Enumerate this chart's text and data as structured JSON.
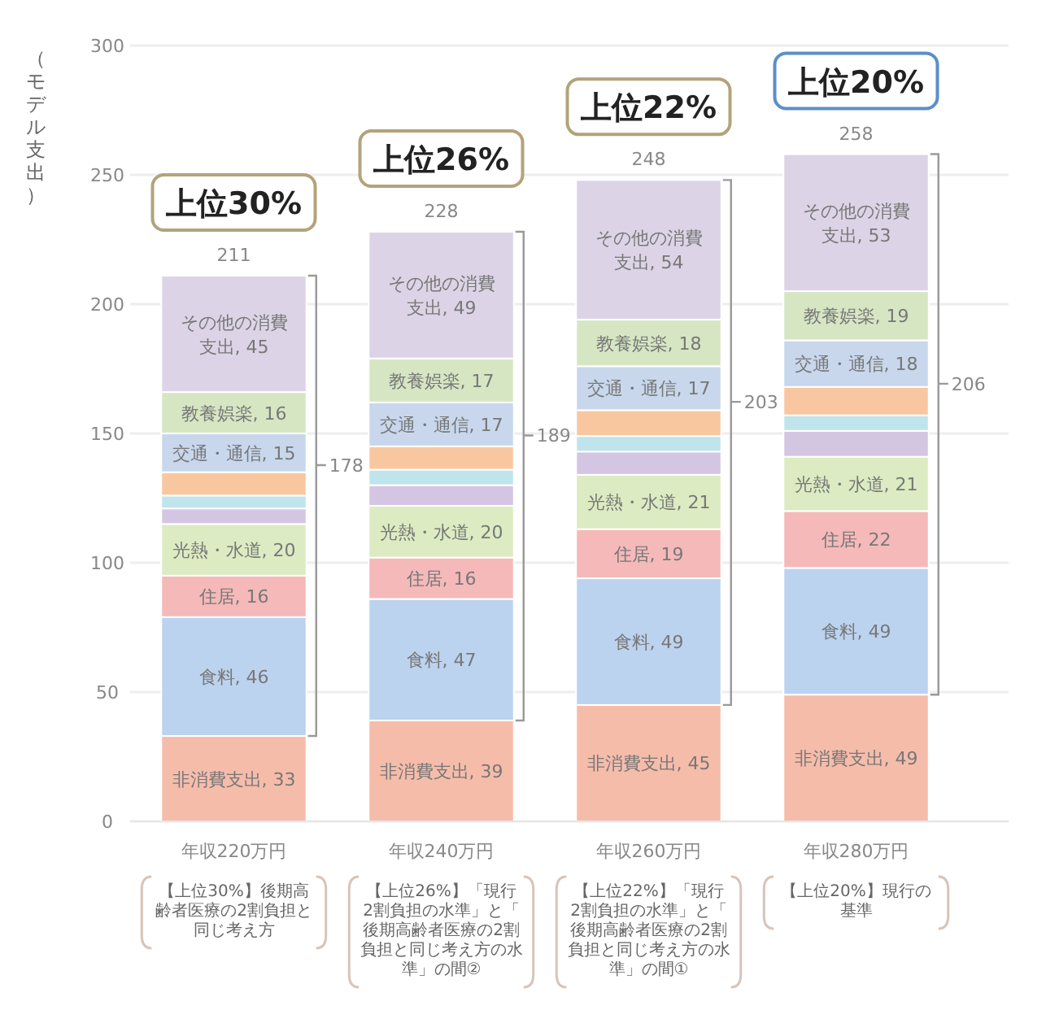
{
  "chart_data": {
    "type": "bar",
    "stacked": true,
    "ylabel": "（モデル支出）",
    "categories": [
      "年収220万円",
      "年収240万円",
      "年収260万円",
      "年収280万円"
    ],
    "ylim": [
      0,
      300
    ],
    "yticks": [
      0,
      50,
      100,
      150,
      200,
      250,
      300
    ],
    "grid": "y",
    "totals": [
      "211",
      "228",
      "248",
      "258"
    ],
    "series": [
      {
        "color": "#f6bcaa",
        "values": [
          33,
          39,
          45,
          49
        ],
        "value_labels": [
          "非消費支出, 33",
          "非消費支出, 39",
          "非消費支出, 45",
          "非消費支出, 49"
        ]
      },
      {
        "color": "#bcd3ef",
        "values": [
          46,
          47,
          49,
          49
        ],
        "value_labels": [
          "食料, 46",
          "食料, 47",
          "食料, 49",
          "食料, 49"
        ]
      },
      {
        "color": "#f5b9b9",
        "values": [
          16,
          16,
          19,
          22
        ],
        "value_labels": [
          "住居, 16",
          "住居, 16",
          "住居, 19",
          "住居, 22"
        ]
      },
      {
        "color": "#dcebc2",
        "values": [
          20,
          20,
          21,
          21
        ],
        "value_labels": [
          "光熱・水道, 20",
          "光熱・水道, 20",
          "光熱・水道, 21",
          "光熱・水道, 21"
        ]
      },
      {
        "color": "#d4c6e3",
        "values": [
          6,
          8,
          9,
          10
        ]
      },
      {
        "color": "#bfe4ec",
        "values": [
          5,
          6,
          6,
          6
        ]
      },
      {
        "color": "#f8c7a0",
        "values": [
          9,
          9,
          10,
          11
        ]
      },
      {
        "color": "#c8d7ec",
        "values": [
          15,
          17,
          17,
          18
        ],
        "value_labels": [
          "交通・通信, 15",
          "交通・通信, 17",
          "交通・通信, 17",
          "交通・通信, 18"
        ]
      },
      {
        "color": "#d6e6c3",
        "values": [
          16,
          17,
          18,
          19
        ],
        "value_labels": [
          "教養娯楽, 16",
          "教養娯楽, 17",
          "教養娯楽, 18",
          "教養娯楽, 19"
        ]
      },
      {
        "color": "#dcd4e6",
        "values": [
          45,
          49,
          54,
          53
        ],
        "value_labels": [
          "その他の消費支出, 45",
          "その他の消費支出, 49",
          "その他の消費支出, 54",
          "その他の消費支出, 53"
        ]
      }
    ],
    "annotations": [
      "上位30%",
      "上位26%",
      "上位22%",
      "上位20%",
      "178",
      "189",
      "203",
      "206",
      "【上位30%】後期高齢者医療の2割負担と同じ考え方",
      "【上位26%】「現行2割負担の水準」と「後期高齢者医療の2割負担と同じ考え方の水準」の間②",
      "【上位22%】「現行2割負担の水準」と「後期高齢者医療の2割負担と同じ考え方の水準」の間①",
      "【上位20%】現行の基準"
    ]
  }
}
